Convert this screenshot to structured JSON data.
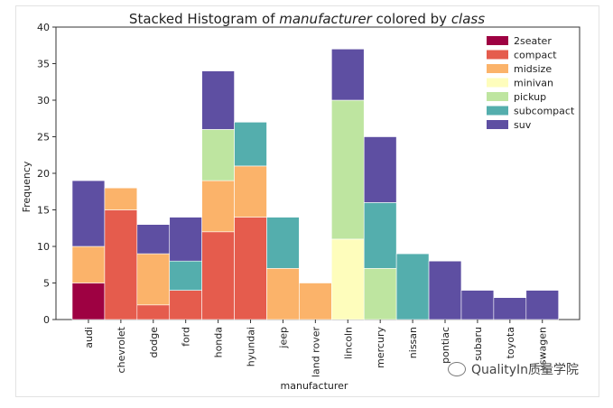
{
  "chart_data": {
    "type": "bar",
    "stacked": true,
    "title_prefix": "Stacked Histogram of ",
    "title_var": "manufacturer",
    "title_mid": " colored by ",
    "title_var2": "class",
    "xlabel": "manufacturer",
    "ylabel": "Frequency",
    "ylim": [
      0,
      40
    ],
    "yticks": [
      0,
      5,
      10,
      15,
      20,
      25,
      30,
      35,
      40
    ],
    "legend_position": "top-right",
    "categories": [
      "audi",
      "chevrolet",
      "dodge",
      "ford",
      "honda",
      "hyundai",
      "jeep",
      "land rover",
      "lincoln",
      "mercury",
      "nissan",
      "pontiac",
      "subaru",
      "toyota",
      "vswagen"
    ],
    "series": [
      {
        "name": "2seater",
        "color": "#9e0142",
        "values": [
          5,
          0,
          0,
          0,
          0,
          0,
          0,
          0,
          0,
          0,
          0,
          0,
          0,
          0,
          0
        ]
      },
      {
        "name": "compact",
        "color": "#e55c4d",
        "values": [
          0,
          15,
          2,
          4,
          12,
          14,
          0,
          0,
          0,
          0,
          0,
          0,
          0,
          0,
          0
        ]
      },
      {
        "name": "midsize",
        "color": "#fbb36a",
        "values": [
          5,
          3,
          7,
          0,
          7,
          7,
          7,
          5,
          0,
          0,
          0,
          0,
          0,
          0,
          0
        ]
      },
      {
        "name": "minivan",
        "color": "#fefdbc",
        "values": [
          0,
          0,
          0,
          0,
          0,
          0,
          0,
          0,
          11,
          0,
          0,
          0,
          0,
          0,
          0
        ]
      },
      {
        "name": "pickup",
        "color": "#bee5a0",
        "values": [
          0,
          0,
          0,
          0,
          7,
          0,
          0,
          0,
          19,
          7,
          0,
          0,
          0,
          0,
          0
        ]
      },
      {
        "name": "subcompact",
        "color": "#54aead",
        "values": [
          0,
          0,
          0,
          4,
          0,
          6,
          7,
          0,
          0,
          9,
          9,
          0,
          0,
          0,
          0
        ]
      },
      {
        "name": "suv",
        "color": "#5e4fa2",
        "values": [
          9,
          0,
          4,
          6,
          8,
          0,
          0,
          0,
          7,
          9,
          0,
          8,
          4,
          3,
          4
        ]
      }
    ]
  },
  "watermark": {
    "text": "QualityIn质量学院",
    "icon": "wechat-icon"
  }
}
